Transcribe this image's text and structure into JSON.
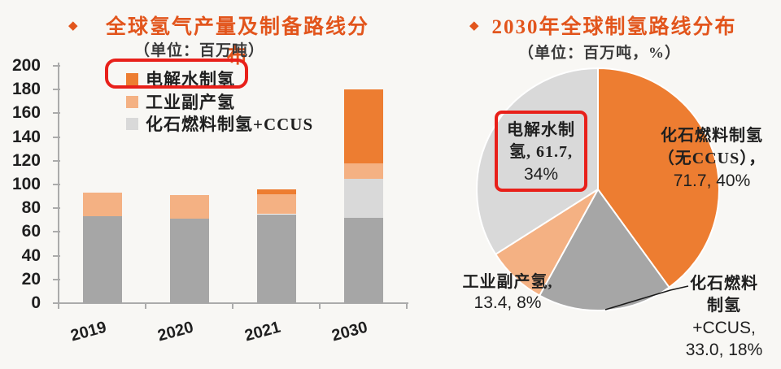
{
  "colors": {
    "background": "#F8F7F4",
    "title": "#E2551C",
    "text": "#262626",
    "subtitle": "#3A3A3A",
    "axis": "#ABABAB",
    "highlight": "#E8201A",
    "leader": "#1A1A1A"
  },
  "left_chart": {
    "bullet": "◆",
    "title": "全球氢气产量及制备路线分布",
    "subtitle": "（单位：百万吨）",
    "legend": [
      {
        "label": "电解水制氢",
        "color": "#ED7D31",
        "highlighted": true
      },
      {
        "label": "工业副产氢",
        "color": "#F4B183",
        "highlighted": false
      },
      {
        "label": "化石燃料制氢+CCUS",
        "color": "#D9D9D9",
        "highlighted": false
      }
    ]
  },
  "right_chart": {
    "bullet": "◆",
    "title": "2030年全球制氢路线分布",
    "subtitle": "（单位：百万吨，%）",
    "labels": [
      {
        "name": "电解水制氢",
        "lines": [
          "电解水制",
          "氢, 61.7,",
          "34%"
        ],
        "boxed": true
      },
      {
        "name": "化石燃料制氢（无CCUS）",
        "lines": [
          "化石燃料制氢",
          "（无CCUS），",
          "71.7, 40%"
        ],
        "boxed": false
      },
      {
        "name": "工业副产氢",
        "lines": [
          "工业副产氢,",
          "13.4, 8%"
        ],
        "boxed": false
      },
      {
        "name": "化石燃料制氢+CCUS",
        "lines": [
          "化石燃料",
          "制氢",
          "+CCUS,",
          "33.0, 18%"
        ],
        "boxed": false
      }
    ]
  },
  "chart_data": [
    {
      "type": "bar",
      "stacked": true,
      "title": "全球氢气产量及制备路线分布",
      "unit": "百万吨",
      "categories": [
        "2019",
        "2020",
        "2021",
        "2030"
      ],
      "series": [
        {
          "name": "化石燃料制氢（无CCUS）",
          "color": "#A6A6A6",
          "values": [
            73,
            71,
            75,
            71.7
          ]
        },
        {
          "name": "化石燃料制氢+CCUS",
          "color": "#D9D9D9",
          "values": [
            0,
            0,
            0,
            33.0
          ]
        },
        {
          "name": "工业副产氢",
          "color": "#F4B183",
          "values": [
            20,
            20,
            17,
            13.4
          ]
        },
        {
          "name": "电解水制氢",
          "color": "#ED7D31",
          "values": [
            0,
            0,
            4,
            61.7
          ]
        }
      ],
      "ylim": [
        0,
        200
      ],
      "ytick_step": 20,
      "grid": false,
      "legend_position": "top-left-inside"
    },
    {
      "type": "pie",
      "title": "2030年全球制氢路线分布",
      "unit": "百万吨, %",
      "start_angle": "12-oclock-clockwise",
      "slices": [
        {
          "label": "化石燃料制氢（无CCUS）",
          "value": 71.7,
          "percent": 40,
          "color": "#ED7D31"
        },
        {
          "label": "化石燃料制氢+CCUS",
          "value": 33.0,
          "percent": 18,
          "color": "#A6A6A6"
        },
        {
          "label": "工业副产氢",
          "value": 13.4,
          "percent": 8,
          "color": "#F4B183"
        },
        {
          "label": "电解水制氢",
          "value": 61.7,
          "percent": 34,
          "color": "#D9D9D9"
        }
      ]
    }
  ]
}
